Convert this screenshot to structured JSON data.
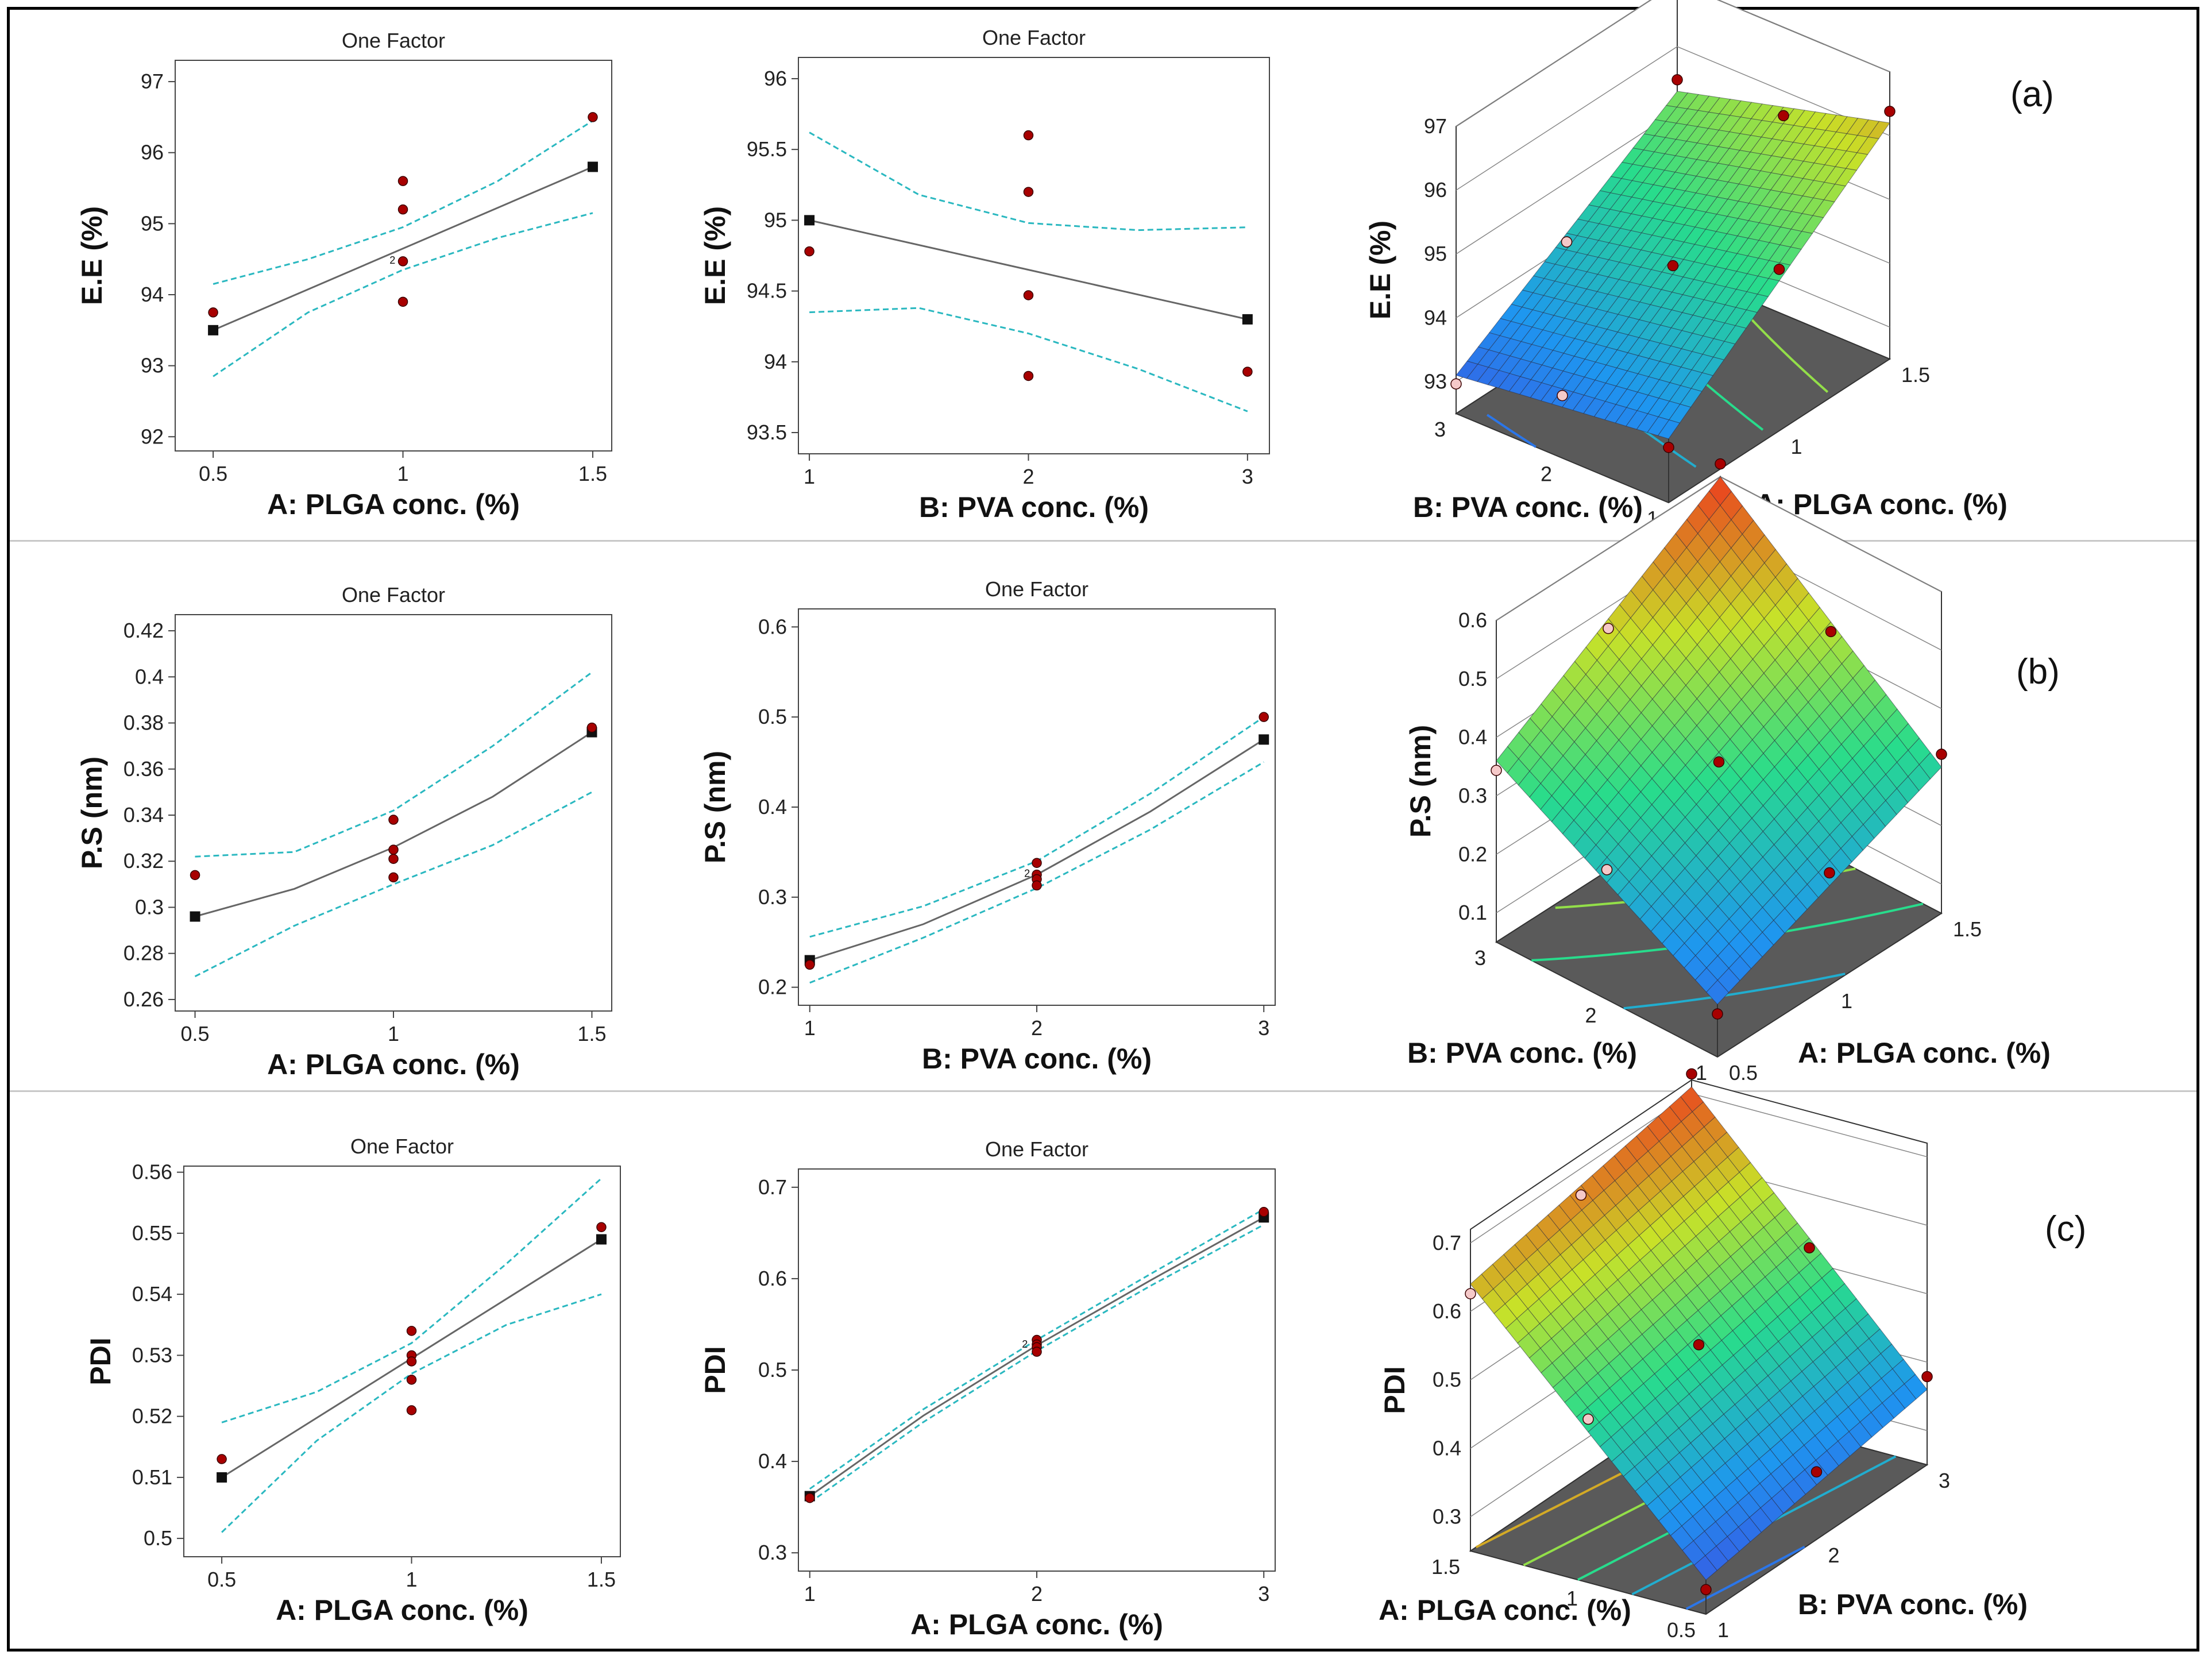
{
  "figure": {
    "colors": {
      "fit_line": "#666666",
      "ci_line": "#2ab8c0",
      "point_fill": "#a80000",
      "mean_marker": "#111111",
      "floor": "#5a5a5a"
    },
    "panel_letters": [
      "(a)",
      "(b)",
      "(c)"
    ]
  },
  "chart_data": [
    {
      "id": "ee-vs-plga",
      "type": "line",
      "title": "One Factor",
      "xlabel": "A: PLGA conc. (%)",
      "ylabel": "E.E (%)",
      "xlim": [
        0.4,
        1.55
      ],
      "ylim": [
        91.8,
        97.3
      ],
      "xticks": [
        0.5,
        1,
        1.5
      ],
      "xtick_labels": [
        "0.5",
        "1",
        "1.5"
      ],
      "yticks": [
        92,
        93,
        94,
        95,
        96,
        97
      ],
      "ytick_labels": [
        "92",
        "93",
        "94",
        "95",
        "96",
        "97"
      ],
      "fit": {
        "x": [
          0.5,
          1.5
        ],
        "y": [
          93.5,
          95.8
        ]
      },
      "ci_lower": {
        "x": [
          0.5,
          0.75,
          1,
          1.25,
          1.5
        ],
        "y": [
          92.85,
          93.75,
          94.35,
          94.8,
          95.15
        ]
      },
      "ci_upper": {
        "x": [
          0.5,
          0.75,
          1,
          1.25,
          1.5
        ],
        "y": [
          94.15,
          94.5,
          94.95,
          95.6,
          96.45
        ]
      },
      "points": {
        "x": [
          0.5,
          1,
          1,
          1,
          1,
          1.5
        ],
        "y": [
          93.75,
          95.6,
          95.2,
          94.47,
          93.9,
          96.5
        ]
      },
      "means": {
        "x": [
          0.5,
          1.5
        ],
        "y": [
          93.5,
          95.8
        ]
      },
      "point_note": {
        "x": 0.98,
        "y": 94.47,
        "text": "2"
      }
    },
    {
      "id": "ee-vs-pva",
      "type": "line",
      "title": "One Factor",
      "xlabel": "B: PVA conc. (%)",
      "ylabel": "E.E (%)",
      "xlim": [
        0.95,
        3.1
      ],
      "ylim": [
        93.35,
        96.15
      ],
      "xticks": [
        1,
        2,
        3
      ],
      "xtick_labels": [
        "1",
        "2",
        "3"
      ],
      "yticks": [
        93.5,
        94,
        94.5,
        95,
        95.5,
        96
      ],
      "ytick_labels": [
        "93.5",
        "94",
        "94.5",
        "95",
        "95.5",
        "96"
      ],
      "fit": {
        "x": [
          1,
          3
        ],
        "y": [
          95.0,
          94.3
        ]
      },
      "ci_lower": {
        "x": [
          1,
          1.5,
          2,
          2.5,
          3
        ],
        "y": [
          94.35,
          94.38,
          94.2,
          93.95,
          93.65
        ]
      },
      "ci_upper": {
        "x": [
          1,
          1.5,
          2,
          2.5,
          3
        ],
        "y": [
          95.62,
          95.18,
          94.98,
          94.93,
          94.95
        ]
      },
      "points": {
        "x": [
          1,
          2,
          2,
          2,
          2,
          3
        ],
        "y": [
          94.78,
          95.6,
          95.2,
          94.47,
          93.9,
          93.93
        ]
      },
      "means": {
        "x": [
          1,
          3
        ],
        "y": [
          95.0,
          94.3
        ]
      },
      "point_note": null
    },
    {
      "id": "ps-vs-plga",
      "type": "line",
      "title": "One Factor",
      "xlabel": "A: PLGA conc. (%)",
      "ylabel": "P.S (nm)",
      "xlim": [
        0.45,
        1.55
      ],
      "ylim": [
        0.255,
        0.427
      ],
      "xticks": [
        0.5,
        1,
        1.5
      ],
      "xtick_labels": [
        "0.5",
        "1",
        "1.5"
      ],
      "yticks": [
        0.26,
        0.28,
        0.3,
        0.32,
        0.34,
        0.36,
        0.38,
        0.4,
        0.42
      ],
      "ytick_labels": [
        "0.26",
        "0.28",
        "0.3",
        "0.32",
        "0.34",
        "0.36",
        "0.38",
        "0.4",
        "0.42"
      ],
      "fit": {
        "x": [
          0.5,
          0.75,
          1,
          1.25,
          1.5
        ],
        "y": [
          0.296,
          0.308,
          0.326,
          0.348,
          0.376
        ]
      },
      "ci_lower": {
        "x": [
          0.5,
          0.75,
          1,
          1.25,
          1.5
        ],
        "y": [
          0.27,
          0.292,
          0.31,
          0.327,
          0.35
        ]
      },
      "ci_upper": {
        "x": [
          0.5,
          0.75,
          1,
          1.25,
          1.5
        ],
        "y": [
          0.322,
          0.324,
          0.342,
          0.37,
          0.402
        ]
      },
      "points": {
        "x": [
          0.5,
          1,
          1,
          1,
          1,
          1.5
        ],
        "y": [
          0.314,
          0.338,
          0.325,
          0.321,
          0.313,
          0.378
        ]
      },
      "means": {
        "x": [
          0.5,
          1.5
        ],
        "y": [
          0.296,
          0.376
        ]
      },
      "point_note": null
    },
    {
      "id": "ps-vs-pva",
      "type": "line",
      "title": "One Factor",
      "xlabel": "B: PVA conc. (%)",
      "ylabel": "P.S (nm)",
      "xlim": [
        0.95,
        3.05
      ],
      "ylim": [
        0.18,
        0.62
      ],
      "xticks": [
        1,
        2,
        3
      ],
      "xtick_labels": [
        "1",
        "2",
        "3"
      ],
      "yticks": [
        0.2,
        0.3,
        0.4,
        0.5,
        0.6
      ],
      "ytick_labels": [
        "0.2",
        "0.3",
        "0.4",
        "0.5",
        "0.6"
      ],
      "fit": {
        "x": [
          1,
          1.5,
          2,
          2.5,
          3
        ],
        "y": [
          0.23,
          0.27,
          0.325,
          0.395,
          0.475
        ]
      },
      "ci_lower": {
        "x": [
          1,
          1.5,
          2,
          2.5,
          3
        ],
        "y": [
          0.205,
          0.255,
          0.31,
          0.375,
          0.45
        ]
      },
      "ci_upper": {
        "x": [
          1,
          1.5,
          2,
          2.5,
          3
        ],
        "y": [
          0.256,
          0.29,
          0.34,
          0.415,
          0.5
        ]
      },
      "points": {
        "x": [
          1,
          2,
          2,
          2,
          2,
          3
        ],
        "y": [
          0.225,
          0.338,
          0.325,
          0.32,
          0.313,
          0.5
        ]
      },
      "means": {
        "x": [
          1,
          3
        ],
        "y": [
          0.23,
          0.475
        ]
      },
      "point_note": {
        "x": 1.97,
        "y": 0.325,
        "text": "2"
      }
    },
    {
      "id": "pdi-vs-plga",
      "type": "line",
      "title": "One Factor",
      "xlabel": "A: PLGA conc. (%)",
      "ylabel": "PDI",
      "xlim": [
        0.4,
        1.55
      ],
      "ylim": [
        0.497,
        0.561
      ],
      "xticks": [
        0.5,
        1,
        1.5
      ],
      "xtick_labels": [
        "0.5",
        "1",
        "1.5"
      ],
      "yticks": [
        0.5,
        0.51,
        0.52,
        0.53,
        0.54,
        0.55,
        0.56
      ],
      "ytick_labels": [
        "0.5",
        "0.51",
        "0.52",
        "0.53",
        "0.54",
        "0.55",
        "0.56"
      ],
      "fit": {
        "x": [
          0.5,
          1.5
        ],
        "y": [
          0.51,
          0.549
        ]
      },
      "ci_lower": {
        "x": [
          0.5,
          0.75,
          1,
          1.25,
          1.5
        ],
        "y": [
          0.501,
          0.516,
          0.527,
          0.535,
          0.54
        ]
      },
      "ci_upper": {
        "x": [
          0.5,
          0.75,
          1,
          1.25,
          1.5
        ],
        "y": [
          0.519,
          0.524,
          0.532,
          0.545,
          0.559
        ]
      },
      "points": {
        "x": [
          0.5,
          1,
          1,
          1,
          1,
          1,
          1.5
        ],
        "y": [
          0.513,
          0.534,
          0.53,
          0.529,
          0.526,
          0.521,
          0.551
        ]
      },
      "means": {
        "x": [
          0.5,
          1.5
        ],
        "y": [
          0.51,
          0.549
        ]
      },
      "point_note": null
    },
    {
      "id": "pdi-vs-second-factor",
      "type": "line",
      "title": "One Factor",
      "xlabel": "A: PLGA conc. (%)",
      "ylabel": "PDI",
      "xlim": [
        0.95,
        3.05
      ],
      "ylim": [
        0.28,
        0.72
      ],
      "xticks": [
        1,
        2,
        3
      ],
      "xtick_labels": [
        "1",
        "2",
        "3"
      ],
      "yticks": [
        0.3,
        0.4,
        0.5,
        0.6,
        0.7
      ],
      "ytick_labels": [
        "0.3",
        "0.4",
        "0.5",
        "0.6",
        "0.7"
      ],
      "fit": {
        "x": [
          1,
          1.5,
          2,
          2.5,
          3
        ],
        "y": [
          0.362,
          0.45,
          0.527,
          0.598,
          0.667
        ]
      },
      "ci_lower": {
        "x": [
          1,
          1.5,
          2,
          2.5,
          3
        ],
        "y": [
          0.355,
          0.443,
          0.521,
          0.592,
          0.659
        ]
      },
      "ci_upper": {
        "x": [
          1,
          1.5,
          2,
          2.5,
          3
        ],
        "y": [
          0.37,
          0.457,
          0.533,
          0.605,
          0.676
        ]
      },
      "points": {
        "x": [
          1,
          2,
          2,
          2,
          2,
          3
        ],
        "y": [
          0.36,
          0.533,
          0.528,
          0.525,
          0.52,
          0.673
        ]
      },
      "means": {
        "x": [
          1,
          3
        ],
        "y": [
          0.362,
          0.667
        ]
      },
      "point_note": {
        "x": 1.96,
        "y": 0.527,
        "text": "2"
      }
    },
    {
      "id": "ee-surface",
      "type": "heatmap",
      "xlabel": "A: PLGA conc. (%)",
      "ylabel": "B: PVA conc. (%)",
      "zlabel": "E.E (%)",
      "xticks": [
        "0.5",
        "1",
        "1.5"
      ],
      "yticks": [
        "1",
        "2",
        "3"
      ],
      "zticks": [
        "93",
        "94",
        "95",
        "96",
        "97"
      ],
      "zlim": [
        92.5,
        97
      ],
      "corner_z": {
        "a_low_b_low": 93.5,
        "a_high_b_low": 96.2,
        "a_low_b_high": 93.1,
        "a_high_b_high": 95.3
      }
    },
    {
      "id": "ps-surface",
      "type": "heatmap",
      "xlabel": "A: PLGA conc. (%)",
      "ylabel": "B: PVA conc. (%)",
      "zlabel": "P.S (nm)",
      "xticks": [
        "0.5",
        "1",
        "1.5"
      ],
      "yticks": [
        "1",
        "2",
        "3"
      ],
      "zticks": [
        "0.1",
        "0.2",
        "0.3",
        "0.4",
        "0.5",
        "0.6"
      ],
      "zlim": [
        0.05,
        0.6
      ],
      "corner_z": {
        "a_low_b_low": 0.14,
        "a_high_b_low": 0.3,
        "a_low_b_high": 0.36,
        "a_high_b_high": 0.6
      }
    },
    {
      "id": "pdi-surface",
      "type": "heatmap",
      "xlabel": "B: PVA conc. (%)",
      "ylabel": "A: PLGA conc. (%)",
      "zlabel": "PDI",
      "xticks": [
        "1",
        "2",
        "3"
      ],
      "yticks": [
        "0.5",
        "1",
        "1.5"
      ],
      "zticks": [
        "0.3",
        "0.4",
        "0.5",
        "0.6",
        "0.7"
      ],
      "zlim": [
        0.25,
        0.72
      ],
      "corner_z": {
        "a_low_b_low": 0.3,
        "a_high_b_low": 0.36,
        "a_low_b_high": 0.64,
        "a_high_b_high": 0.71
      }
    }
  ]
}
